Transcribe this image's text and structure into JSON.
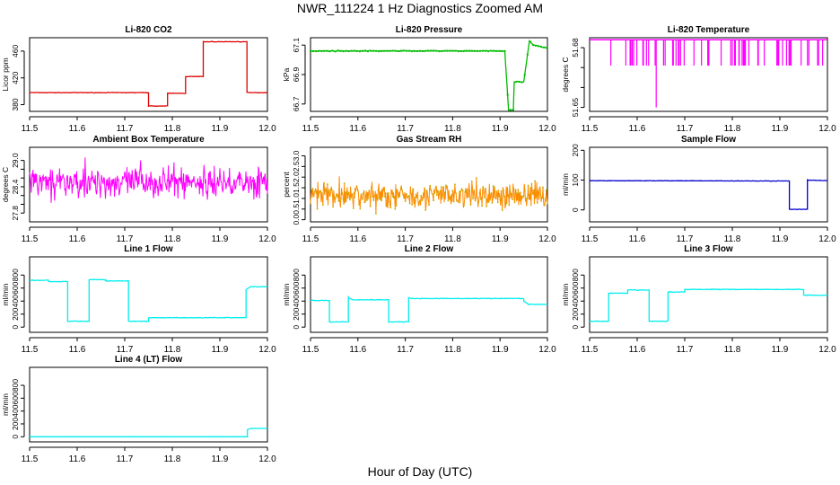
{
  "title": "NWR_111224  1 Hz Diagnostics Zoomed AM",
  "xlabel": "Hour of Day (UTC)",
  "chart_data": [
    {
      "type": "line",
      "title": "Li-820 CO2",
      "ylabel": "Licor ppm",
      "color": "#dd0000",
      "xlim": [
        11.5,
        12.0
      ],
      "ylim": [
        370,
        480
      ],
      "xticks": [
        11.5,
        11.6,
        11.7,
        11.8,
        11.9,
        12.0
      ],
      "yticks": [
        380,
        420,
        460
      ],
      "ytick_labels": [
        "380",
        "420",
        "460"
      ],
      "noise": 0.6,
      "segments": [
        [
          11.5,
          398
        ],
        [
          11.75,
          398
        ],
        [
          11.75,
          378
        ],
        [
          11.79,
          378
        ],
        [
          11.79,
          397
        ],
        [
          11.828,
          397
        ],
        [
          11.828,
          422
        ],
        [
          11.865,
          422
        ],
        [
          11.865,
          474
        ],
        [
          11.957,
          474
        ],
        [
          11.957,
          398
        ],
        [
          12.0,
          398
        ]
      ]
    },
    {
      "type": "line",
      "title": "Li-820 Pressure",
      "ylabel": "kPa",
      "color": "#00bb00",
      "markers": true,
      "xlim": [
        11.5,
        12.0
      ],
      "ylim": [
        66.65,
        67.15
      ],
      "xticks": [
        11.5,
        11.6,
        11.7,
        11.8,
        11.9,
        12.0
      ],
      "yticks": [
        66.7,
        66.9,
        67.1
      ],
      "ytick_labels": [
        "66.7",
        "66.9",
        "67.1"
      ],
      "noise": 0.004,
      "segments": [
        [
          11.5,
          67.06
        ],
        [
          11.91,
          67.06
        ],
        [
          11.918,
          66.66
        ],
        [
          11.928,
          66.66
        ],
        [
          11.93,
          66.85
        ],
        [
          11.95,
          66.85
        ],
        [
          11.962,
          67.13
        ],
        [
          11.97,
          67.1
        ],
        [
          12.0,
          67.08
        ]
      ]
    },
    {
      "type": "spikes",
      "title": "Li-820 Temperature",
      "ylabel": "degrees C",
      "color": "#ff00ff",
      "xlim": [
        11.5,
        12.0
      ],
      "ylim": [
        51.648,
        51.685
      ],
      "xticks": [
        11.5,
        11.6,
        11.7,
        11.8,
        11.9,
        12.0
      ],
      "yticks": [
        51.65,
        51.66,
        51.67,
        51.68
      ],
      "ytick_labels": [
        "51.65",
        "",
        "",
        "51.68"
      ],
      "base": 51.684,
      "low": 51.671,
      "count": 60,
      "spike_x": 11.64,
      "spike_y": 51.65
    },
    {
      "type": "noise",
      "title": "Ambient Box Temperature",
      "ylabel": "degrees C",
      "color": "#ff00ff",
      "xlim": [
        11.5,
        12.0
      ],
      "ylim": [
        27.6,
        29.3
      ],
      "xticks": [
        11.5,
        11.6,
        11.7,
        11.8,
        11.9,
        12.0
      ],
      "yticks": [
        27.8,
        28.0,
        28.2,
        28.4,
        28.6,
        28.8,
        29.0
      ],
      "ytick_labels": [
        "27.8",
        "",
        "",
        "28.4",
        "",
        "",
        "29.0"
      ],
      "mean": 28.5,
      "amp": 0.5
    },
    {
      "type": "noise",
      "title": "Gas Stream RH",
      "ylabel": "percent",
      "color": "#ff8c00",
      "markers": true,
      "marker_color": "#ccaa00",
      "xlim": [
        11.5,
        12.0
      ],
      "ylim": [
        -0.1,
        3.4
      ],
      "xticks": [
        11.5,
        11.6,
        11.7,
        11.8,
        11.9,
        12.0
      ],
      "yticks": [
        0.0,
        0.5,
        1.0,
        1.5,
        2.0,
        2.5,
        3.0
      ],
      "ytick_labels": [
        "0.0",
        "0.5",
        "1.0",
        "1.5",
        "2.0",
        "2.5",
        "3.0"
      ],
      "mean": 1.15,
      "amp": 0.9
    },
    {
      "type": "line",
      "title": "Sample Flow",
      "ylabel": "ml/min",
      "color": "#0000cc",
      "xlim": [
        11.5,
        12.0
      ],
      "ylim": [
        -40,
        210
      ],
      "xticks": [
        11.5,
        11.6,
        11.7,
        11.8,
        11.9,
        12.0
      ],
      "yticks": [
        0,
        100,
        200
      ],
      "ytick_labels": [
        "0",
        "100",
        "200"
      ],
      "noise": 1.2,
      "segments": [
        [
          11.5,
          98
        ],
        [
          11.92,
          97
        ],
        [
          11.92,
          2
        ],
        [
          11.958,
          2
        ],
        [
          11.958,
          100
        ],
        [
          12.0,
          98
        ]
      ]
    },
    {
      "type": "line",
      "title": "Line 1 Flow",
      "ylabel": "ml/min",
      "color": "#00eeee",
      "xlim": [
        11.5,
        12.0
      ],
      "ylim": [
        -80,
        1080
      ],
      "xticks": [
        11.5,
        11.6,
        11.7,
        11.8,
        11.9,
        12.0
      ],
      "yticks": [
        0,
        200,
        400,
        600,
        800
      ],
      "ytick_labels": [
        "0",
        "200",
        "400",
        "600",
        "800"
      ],
      "noise": 8,
      "segments": [
        [
          11.5,
          720
        ],
        [
          11.54,
          720
        ],
        [
          11.54,
          700
        ],
        [
          11.58,
          700
        ],
        [
          11.58,
          90
        ],
        [
          11.625,
          90
        ],
        [
          11.625,
          730
        ],
        [
          11.66,
          730
        ],
        [
          11.66,
          710
        ],
        [
          11.708,
          710
        ],
        [
          11.708,
          90
        ],
        [
          11.75,
          90
        ],
        [
          11.75,
          145
        ],
        [
          11.955,
          145
        ],
        [
          11.955,
          580
        ],
        [
          11.965,
          620
        ],
        [
          12.0,
          620
        ]
      ]
    },
    {
      "type": "line",
      "title": "Line 2 Flow",
      "ylabel": "ml/min",
      "color": "#00eeee",
      "xlim": [
        11.5,
        12.0
      ],
      "ylim": [
        -80,
        1080
      ],
      "xticks": [
        11.5,
        11.6,
        11.7,
        11.8,
        11.9,
        12.0
      ],
      "yticks": [
        0,
        200,
        400,
        600,
        800
      ],
      "ytick_labels": [
        "0",
        "200",
        "400",
        "600",
        "800"
      ],
      "noise": 8,
      "segments": [
        [
          11.5,
          410
        ],
        [
          11.54,
          410
        ],
        [
          11.54,
          80
        ],
        [
          11.58,
          80
        ],
        [
          11.58,
          460
        ],
        [
          11.588,
          420
        ],
        [
          11.665,
          420
        ],
        [
          11.665,
          80
        ],
        [
          11.707,
          80
        ],
        [
          11.707,
          450
        ],
        [
          11.715,
          440
        ],
        [
          11.95,
          440
        ],
        [
          11.95,
          400
        ],
        [
          11.96,
          350
        ],
        [
          12.0,
          350
        ]
      ]
    },
    {
      "type": "line",
      "title": "Line 3 Flow",
      "ylabel": "ml/min",
      "color": "#00eeee",
      "xlim": [
        11.5,
        12.0
      ],
      "ylim": [
        -80,
        1080
      ],
      "xticks": [
        11.5,
        11.6,
        11.7,
        11.8,
        11.9,
        12.0
      ],
      "yticks": [
        0,
        200,
        400,
        600,
        800
      ],
      "ytick_labels": [
        "0",
        "200",
        "400",
        "600",
        "800"
      ],
      "noise": 8,
      "segments": [
        [
          11.5,
          90
        ],
        [
          11.54,
          90
        ],
        [
          11.54,
          520
        ],
        [
          11.58,
          520
        ],
        [
          11.58,
          570
        ],
        [
          11.625,
          570
        ],
        [
          11.625,
          90
        ],
        [
          11.665,
          90
        ],
        [
          11.665,
          540
        ],
        [
          11.7,
          540
        ],
        [
          11.7,
          580
        ],
        [
          11.95,
          580
        ],
        [
          11.95,
          490
        ],
        [
          12.0,
          490
        ]
      ]
    },
    {
      "type": "line",
      "title": "Line 4 (LT) Flow",
      "ylabel": "ml/min",
      "color": "#00eeee",
      "xlim": [
        11.5,
        12.0
      ],
      "ylim": [
        -80,
        1080
      ],
      "xticks": [
        11.5,
        11.6,
        11.7,
        11.8,
        11.9,
        12.0
      ],
      "yticks": [
        0,
        200,
        400,
        600,
        800
      ],
      "ytick_labels": [
        "0",
        "200",
        "400",
        "600",
        "800"
      ],
      "noise": 1,
      "segments": [
        [
          11.5,
          0
        ],
        [
          11.958,
          0
        ],
        [
          11.958,
          110
        ],
        [
          11.965,
          130
        ],
        [
          12.0,
          130
        ]
      ]
    }
  ]
}
